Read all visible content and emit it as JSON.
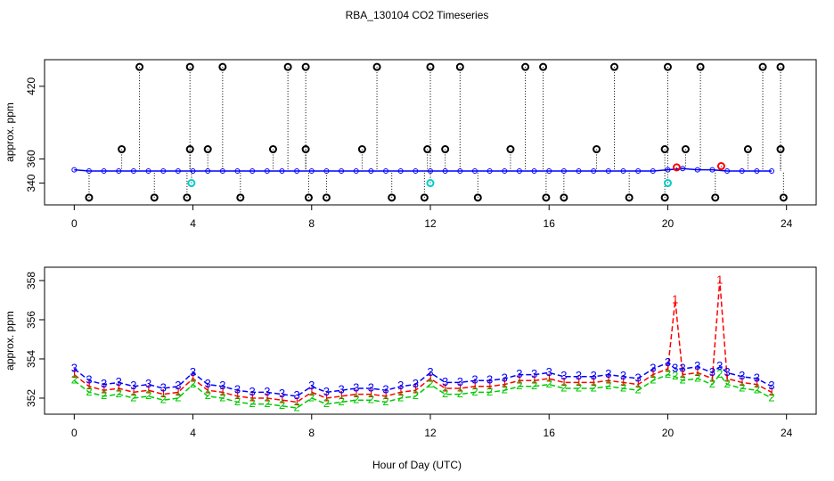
{
  "chart_data": [
    {
      "type": "scatter",
      "title": "RBA_130104  CO2 Timeseries",
      "ylabel": "approx. ppm",
      "xlim": [
        -1,
        25
      ],
      "xticks": [
        0,
        4,
        8,
        12,
        16,
        20,
        24
      ],
      "ylim": [
        322,
        442
      ],
      "yticks": [
        340,
        360,
        420
      ],
      "series": [
        {
          "style": "line",
          "color": "#0000ff",
          "x": [
            0,
            0.5,
            1,
            1.5,
            2,
            2.5,
            3,
            3.5,
            4,
            4.5,
            5,
            5.5,
            6,
            6.5,
            7,
            7.5,
            8,
            8.5,
            9,
            9.5,
            10,
            10.5,
            11,
            11.5,
            12,
            12.5,
            13,
            13.5,
            14,
            14.5,
            15,
            15.5,
            16,
            16.5,
            17,
            17.5,
            18,
            18.5,
            19,
            19.5,
            20,
            20.5,
            21,
            21.5,
            22,
            22.5,
            23,
            23.5
          ],
          "values": [
            351,
            350,
            350,
            350,
            350,
            350,
            350,
            350,
            350,
            350,
            350,
            350,
            350,
            350,
            350,
            350,
            350,
            350,
            350,
            350,
            350,
            350,
            350,
            350,
            350,
            350,
            350,
            350,
            350,
            350,
            350,
            350,
            350,
            350,
            350,
            350,
            350,
            350,
            350,
            350,
            351,
            352,
            351,
            351,
            350,
            350,
            350,
            350
          ]
        },
        {
          "style": "circle",
          "color": "#000000",
          "x": [
            2.2,
            3.9,
            5.0,
            7.2,
            7.8,
            10.2,
            12.0,
            13.0,
            15.2,
            15.8,
            18.2,
            20.0,
            21.1,
            23.2,
            23.8
          ],
          "values": [
            436,
            436,
            436,
            436,
            436,
            436,
            436,
            436,
            436,
            436,
            436,
            436,
            436,
            436,
            436
          ]
        },
        {
          "style": "circle",
          "color": "#000000",
          "x": [
            0.5,
            2.7,
            3.8,
            5.6,
            7.9,
            8.5,
            10.7,
            11.8,
            13.6,
            15.9,
            16.5,
            18.7,
            19.9,
            21.6,
            23.9
          ],
          "values": [
            328,
            328,
            328,
            328,
            328,
            328,
            328,
            328,
            328,
            328,
            328,
            328,
            328,
            328,
            328
          ]
        },
        {
          "style": "circle",
          "color": "#000000",
          "x": [
            1.6,
            3.9,
            4.5,
            6.7,
            7.8,
            9.7,
            11.9,
            12.5,
            14.7,
            17.6,
            19.9,
            20.6,
            22.7,
            23.8
          ],
          "values": [
            368,
            368,
            368,
            368,
            368,
            368,
            368,
            368,
            368,
            368,
            368,
            368,
            368,
            368
          ]
        },
        {
          "style": "circle",
          "color": "#00cccc",
          "x": [
            3.95,
            12.0,
            20.0
          ],
          "values": [
            340,
            340,
            340
          ]
        },
        {
          "style": "circle",
          "color": "#ff0000",
          "x": [
            20.3,
            21.8
          ],
          "values": [
            353,
            354
          ]
        }
      ]
    },
    {
      "type": "line",
      "ylabel": "approx. ppm",
      "xlabel": "Hour of Day (UTC)",
      "xlim": [
        -1,
        25
      ],
      "xticks": [
        0,
        4,
        8,
        12,
        16,
        20,
        24
      ],
      "ylim": [
        351.18,
        358.68
      ],
      "yticks": [
        352,
        354,
        356,
        358
      ],
      "x": [
        0,
        0.5,
        1,
        1.5,
        2,
        2.5,
        3,
        3.5,
        4,
        4.5,
        5,
        5.5,
        6,
        6.5,
        7,
        7.5,
        8,
        8.5,
        9,
        9.5,
        10,
        10.5,
        11,
        11.5,
        12,
        12.5,
        13,
        13.5,
        14,
        14.5,
        15,
        15.5,
        16,
        16.5,
        17,
        17.5,
        18,
        18.5,
        19,
        19.5,
        20,
        20.25,
        20.5,
        21,
        21.5,
        21.75,
        22,
        22.5,
        23,
        23.5
      ],
      "series": [
        {
          "marker": "1",
          "color": "#ff0000",
          "values": [
            353.2,
            352.6,
            352.4,
            352.5,
            352.3,
            352.4,
            352.2,
            352.3,
            353.0,
            352.4,
            352.3,
            352.1,
            352.0,
            352.0,
            351.9,
            351.8,
            352.3,
            352.0,
            352.1,
            352.2,
            352.2,
            352.1,
            352.3,
            352.4,
            353.0,
            352.5,
            352.5,
            352.6,
            352.6,
            352.7,
            352.9,
            352.9,
            353.0,
            352.8,
            352.8,
            352.8,
            352.9,
            352.8,
            352.7,
            353.2,
            353.5,
            357.0,
            353.2,
            353.3,
            353.0,
            358.0,
            353.0,
            352.8,
            352.7,
            352.3
          ]
        },
        {
          "marker": "2",
          "color": "#00cc00",
          "values": [
            352.9,
            352.3,
            352.1,
            352.2,
            352.0,
            352.1,
            351.9,
            352.0,
            352.7,
            352.1,
            352.0,
            351.8,
            351.7,
            351.7,
            351.6,
            351.5,
            352.0,
            351.7,
            351.8,
            351.9,
            351.9,
            351.8,
            352.0,
            352.1,
            352.7,
            352.2,
            352.2,
            352.3,
            352.3,
            352.4,
            352.6,
            352.6,
            352.7,
            352.5,
            352.5,
            352.5,
            352.6,
            352.5,
            352.4,
            352.9,
            353.2,
            353.1,
            352.9,
            353.0,
            352.7,
            353.2,
            352.7,
            352.5,
            352.4,
            352.0
          ]
        },
        {
          "marker": "3",
          "color": "#0000ff",
          "values": [
            353.5,
            352.9,
            352.7,
            352.8,
            352.6,
            352.7,
            352.5,
            352.6,
            353.3,
            352.7,
            352.6,
            352.4,
            352.3,
            352.3,
            352.2,
            352.1,
            352.6,
            352.3,
            352.4,
            352.5,
            352.5,
            352.4,
            352.6,
            352.7,
            353.3,
            352.8,
            352.8,
            352.9,
            352.9,
            353.0,
            353.2,
            353.2,
            353.3,
            353.1,
            353.1,
            353.1,
            353.2,
            353.1,
            353.0,
            353.5,
            353.8,
            353.5,
            353.5,
            353.6,
            353.3,
            353.6,
            353.3,
            353.1,
            353.0,
            352.6
          ]
        }
      ]
    }
  ]
}
